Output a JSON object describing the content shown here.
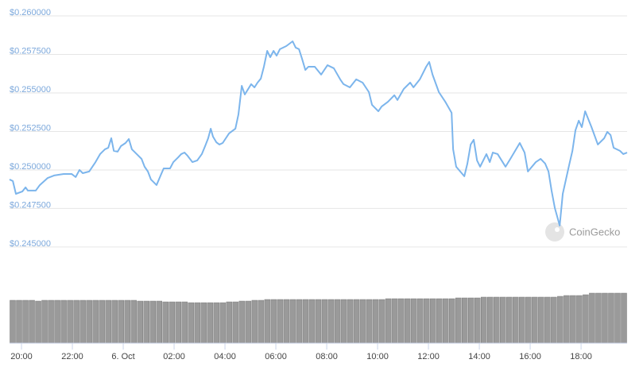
{
  "chart_data": {
    "type": "line",
    "watermark": "CoinGecko",
    "color": "#7cb5ec",
    "grid": true,
    "xlim": [
      -0.47,
      23.81
    ],
    "ylim": [
      0.2435,
      0.26
    ],
    "yticks": [
      {
        "value": 0.26,
        "label": "$0.260000"
      },
      {
        "value": 0.2575,
        "label": "$0.257500"
      },
      {
        "value": 0.255,
        "label": "$0.255000"
      },
      {
        "value": 0.2525,
        "label": "$0.252500"
      },
      {
        "value": 0.25,
        "label": "$0.250000"
      },
      {
        "value": 0.2475,
        "label": "$0.247500"
      },
      {
        "value": 0.245,
        "label": "$0.245000"
      }
    ],
    "xticks": [
      {
        "value": 0,
        "label": "20:00"
      },
      {
        "value": 2,
        "label": "22:00"
      },
      {
        "value": 4,
        "label": "6. Oct"
      },
      {
        "value": 6,
        "label": "02:00"
      },
      {
        "value": 8,
        "label": "04:00"
      },
      {
        "value": 10,
        "label": "06:00"
      },
      {
        "value": 12,
        "label": "08:00"
      },
      {
        "value": 14,
        "label": "10:00"
      },
      {
        "value": 16,
        "label": "12:00"
      },
      {
        "value": 18,
        "label": "14:00"
      },
      {
        "value": 20,
        "label": "16:00"
      },
      {
        "value": 22,
        "label": "18:00"
      }
    ],
    "x": [
      -0.47,
      -0.34,
      -0.22,
      0.03,
      0.16,
      0.25,
      0.56,
      0.72,
      1.03,
      1.28,
      1.66,
      1.97,
      2.13,
      2.28,
      2.41,
      2.66,
      2.91,
      3.09,
      3.28,
      3.41,
      3.53,
      3.63,
      3.78,
      3.91,
      4.09,
      4.22,
      4.34,
      4.53,
      4.72,
      4.84,
      4.97,
      5.09,
      5.31,
      5.47,
      5.59,
      5.84,
      5.97,
      6.16,
      6.28,
      6.41,
      6.53,
      6.72,
      6.91,
      7.09,
      7.22,
      7.34,
      7.44,
      7.53,
      7.66,
      7.78,
      7.91,
      8.16,
      8.41,
      8.53,
      8.66,
      8.78,
      9.03,
      9.16,
      9.28,
      9.41,
      9.53,
      9.66,
      9.78,
      9.91,
      10.03,
      10.16,
      10.41,
      10.66,
      10.78,
      10.91,
      11.03,
      11.16,
      11.28,
      11.53,
      11.78,
      12.03,
      12.28,
      12.53,
      12.66,
      12.91,
      13.16,
      13.41,
      13.66,
      13.78,
      14.03,
      14.16,
      14.41,
      14.66,
      14.78,
      15.03,
      15.28,
      15.41,
      15.66,
      15.91,
      16.03,
      16.16,
      16.41,
      16.66,
      16.91,
      16.97,
      17.09,
      17.41,
      17.53,
      17.66,
      17.78,
      17.91,
      18.03,
      18.28,
      18.41,
      18.53,
      18.72,
      19.03,
      19.22,
      19.59,
      19.78,
      19.91,
      20.22,
      20.41,
      20.59,
      20.72,
      20.84,
      20.97,
      21.16,
      21.28,
      21.53,
      21.66,
      21.78,
      21.91,
      22.03,
      22.16,
      22.41,
      22.66,
      22.91,
      23.03,
      23.16,
      23.28,
      23.53,
      23.66,
      23.81
    ],
    "values": [
      0.24938,
      0.24928,
      0.24845,
      0.2486,
      0.24887,
      0.24866,
      0.24866,
      0.24902,
      0.24948,
      0.24964,
      0.24974,
      0.24974,
      0.24954,
      0.25,
      0.24979,
      0.2499,
      0.25051,
      0.25103,
      0.25134,
      0.25144,
      0.25206,
      0.25124,
      0.25119,
      0.25155,
      0.25175,
      0.25201,
      0.25134,
      0.25103,
      0.25072,
      0.25021,
      0.2499,
      0.24938,
      0.24902,
      0.24964,
      0.2501,
      0.2501,
      0.25051,
      0.25082,
      0.25103,
      0.25113,
      0.25092,
      0.25051,
      0.25062,
      0.25103,
      0.25155,
      0.25206,
      0.25268,
      0.25216,
      0.2518,
      0.25165,
      0.25175,
      0.25237,
      0.25268,
      0.25361,
      0.25546,
      0.2549,
      0.25557,
      0.25536,
      0.25567,
      0.25593,
      0.2567,
      0.25773,
      0.25732,
      0.25773,
      0.25742,
      0.25784,
      0.25804,
      0.25835,
      0.25794,
      0.25784,
      0.25722,
      0.25649,
      0.2567,
      0.2567,
      0.25619,
      0.2568,
      0.2566,
      0.25588,
      0.25557,
      0.25536,
      0.25588,
      0.25567,
      0.25505,
      0.25423,
      0.25381,
      0.25412,
      0.25443,
      0.25485,
      0.25454,
      0.25526,
      0.25567,
      0.25536,
      0.25588,
      0.2567,
      0.25701,
      0.25619,
      0.25505,
      0.25443,
      0.25371,
      0.25134,
      0.25021,
      0.24959,
      0.25041,
      0.25165,
      0.25196,
      0.25062,
      0.25021,
      0.25103,
      0.25051,
      0.25113,
      0.25103,
      0.25021,
      0.25072,
      0.25175,
      0.25113,
      0.2499,
      0.25051,
      0.25072,
      0.25041,
      0.2499,
      0.24866,
      0.24752,
      0.24639,
      0.24845,
      0.25031,
      0.25124,
      0.25258,
      0.2532,
      0.25278,
      0.25381,
      0.25278,
      0.25165,
      0.25206,
      0.25247,
      0.25227,
      0.25144,
      0.25124,
      0.25103,
      0.25113
    ],
    "volume": {
      "color": "#9a9a9a",
      "ylim": [
        0,
        64
      ],
      "values": [
        54,
        54,
        54,
        54,
        53,
        54,
        54,
        54,
        54,
        54,
        54,
        54,
        54,
        54,
        54,
        54,
        54,
        54,
        54,
        54,
        53,
        53,
        53,
        53,
        52,
        52,
        52,
        52,
        51,
        51,
        51,
        51,
        51,
        51,
        52,
        52,
        53,
        53,
        54,
        54,
        55,
        55,
        55,
        55,
        55,
        55,
        55,
        55,
        55,
        55,
        55,
        55,
        55,
        55,
        55,
        55,
        55,
        55,
        55,
        56,
        56,
        56,
        56,
        56,
        56,
        56,
        56,
        56,
        56,
        56,
        57,
        57,
        57,
        57,
        58,
        58,
        58,
        58,
        58,
        58,
        58,
        58,
        58,
        58,
        58,
        58,
        59,
        60,
        60,
        60,
        61,
        63,
        63,
        63,
        63,
        63,
        63
      ]
    }
  }
}
